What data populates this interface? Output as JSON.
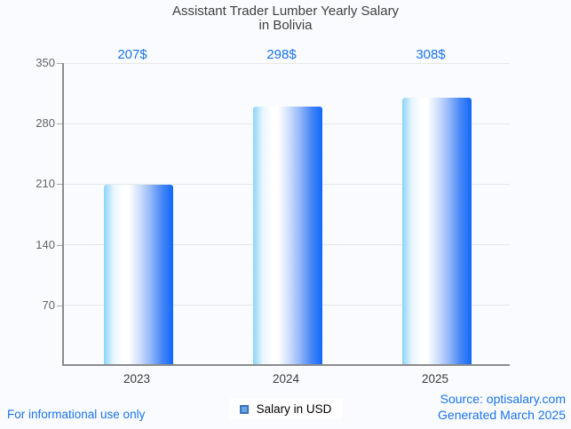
{
  "title": {
    "line1": "Assistant Trader Lumber Yearly Salary",
    "line2": "in Bolivia"
  },
  "chart_data": {
    "type": "bar",
    "title": "Assistant Trader Lumber Yearly Salary in Bolivia",
    "categories": [
      "2023",
      "2024",
      "2025"
    ],
    "values": [
      207,
      298,
      308
    ],
    "value_labels": [
      "207$",
      "298$",
      "308$"
    ],
    "series": [
      {
        "name": "Salary in USD",
        "values": [
          207,
          298,
          308
        ]
      }
    ],
    "ylim": [
      0,
      350
    ],
    "yticks": [
      350,
      280,
      210,
      140,
      70
    ],
    "grid": true,
    "legend_position": "bottom"
  },
  "legend": {
    "label": "Salary in USD"
  },
  "footer": {
    "left": "For informational use only",
    "source": "Source: optisalary.com",
    "generated": "Generated March 2025"
  },
  "colors": {
    "accent_blue": "#1a73e8",
    "bar_gradient_left": "#8ad4f9",
    "bar_gradient_mid": "#ffffff",
    "bar_gradient_right": "#1168fa",
    "legend_fill": "#64a7e8",
    "legend_border": "#3e71b5",
    "axis": "#8c8c8c",
    "gridline": "#e7e7e7",
    "title_text": "#404040",
    "tick_text": "#646464",
    "category_text": "#3a3a3a",
    "background": "#fafbfe"
  }
}
